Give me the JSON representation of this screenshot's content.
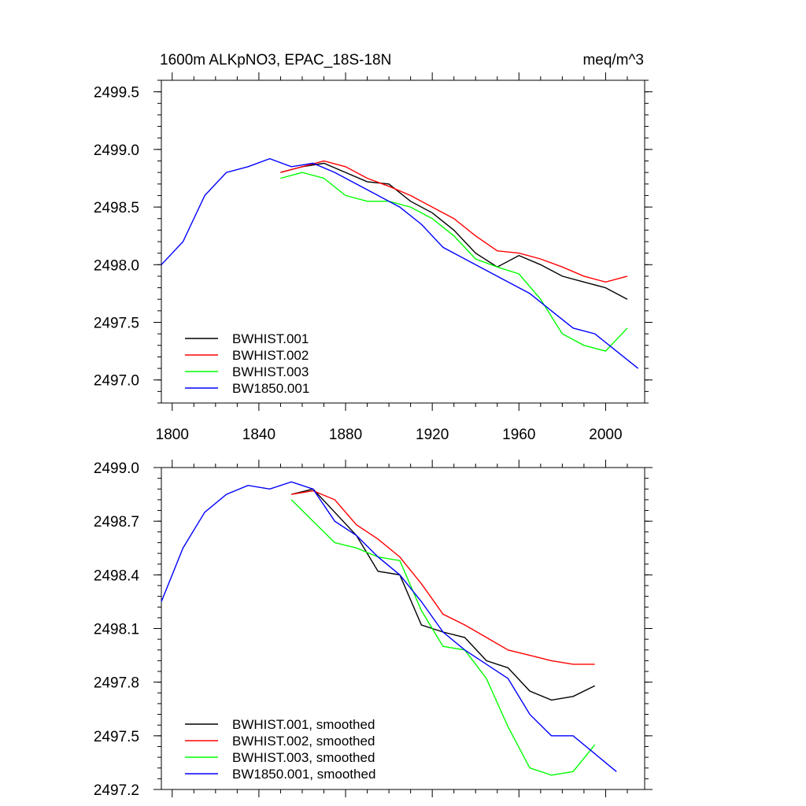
{
  "chart_data": [
    {
      "type": "line",
      "title": "1600m ALKpNO3, EPAC_18S-18N",
      "units": "meq/m^3",
      "xlim": [
        1795,
        2018
      ],
      "ylim": [
        2496.8,
        2499.6
      ],
      "xticks": [
        1800,
        1840,
        1880,
        1920,
        1960,
        2000
      ],
      "yticks": [
        2497.0,
        2497.5,
        2498.0,
        2498.5,
        2499.0,
        2499.5
      ],
      "ytick_labels": [
        "2497.0",
        "2497.5",
        "2498.0",
        "2498.5",
        "2499.0",
        "2499.5"
      ],
      "grid": false,
      "legend": "bottom-left",
      "series": [
        {
          "name": "BWHIST.001",
          "color": "#000000",
          "x_start": 1850,
          "x_step": 10,
          "values": [
            2498.8,
            2498.85,
            2498.88,
            2498.8,
            2498.72,
            2498.7,
            2498.55,
            2498.45,
            2498.3,
            2498.1,
            2497.98,
            2498.08,
            2498.0,
            2497.9,
            2497.85,
            2497.8,
            2497.7
          ]
        },
        {
          "name": "BWHIST.002",
          "color": "#ff0000",
          "x_start": 1850,
          "x_step": 10,
          "values": [
            2498.8,
            2498.85,
            2498.9,
            2498.85,
            2498.75,
            2498.68,
            2498.6,
            2498.5,
            2498.4,
            2498.25,
            2498.12,
            2498.1,
            2498.05,
            2497.98,
            2497.9,
            2497.85,
            2497.9
          ]
        },
        {
          "name": "BWHIST.003",
          "color": "#00ff00",
          "x_start": 1850,
          "x_step": 10,
          "values": [
            2498.75,
            2498.8,
            2498.75,
            2498.6,
            2498.55,
            2498.55,
            2498.5,
            2498.4,
            2498.25,
            2498.05,
            2497.98,
            2497.92,
            2497.7,
            2497.4,
            2497.3,
            2497.25,
            2497.45
          ]
        },
        {
          "name": "BW1850.001",
          "color": "#0000ff",
          "x_start": 1795,
          "x_step": 10,
          "values": [
            2498.0,
            2498.2,
            2498.6,
            2498.8,
            2498.85,
            2498.92,
            2498.85,
            2498.88,
            2498.8,
            2498.7,
            2498.6,
            2498.5,
            2498.35,
            2498.15,
            2498.05,
            2497.95,
            2497.85,
            2497.75,
            2497.6,
            2497.45,
            2497.4,
            2497.25,
            2497.1
          ]
        }
      ]
    },
    {
      "type": "line",
      "xlim": [
        1795,
        2018
      ],
      "ylim": [
        2497.2,
        2499.0
      ],
      "xticks": [
        1800,
        1840,
        1880,
        1920,
        1960,
        2000
      ],
      "yticks": [
        2497.2,
        2497.5,
        2497.8,
        2498.1,
        2498.4,
        2498.7,
        2499.0
      ],
      "ytick_labels": [
        "2497.2",
        "2497.5",
        "2497.8",
        "2498.1",
        "2498.4",
        "2498.7",
        "2499.0"
      ],
      "grid": false,
      "legend": "bottom-left",
      "series": [
        {
          "name": "BWHIST.001, smoothed",
          "color": "#000000",
          "x_start": 1855,
          "x_step": 10,
          "values": [
            2498.85,
            2498.88,
            2498.75,
            2498.62,
            2498.42,
            2498.4,
            2498.12,
            2498.08,
            2498.05,
            2497.92,
            2497.88,
            2497.75,
            2497.7,
            2497.72,
            2497.78
          ]
        },
        {
          "name": "BWHIST.002, smoothed",
          "color": "#ff0000",
          "x_start": 1855,
          "x_step": 10,
          "values": [
            2498.85,
            2498.87,
            2498.82,
            2498.68,
            2498.6,
            2498.5,
            2498.35,
            2498.18,
            2498.12,
            2498.05,
            2497.98,
            2497.95,
            2497.92,
            2497.9,
            2497.9
          ]
        },
        {
          "name": "BWHIST.003, smoothed",
          "color": "#00ff00",
          "x_start": 1855,
          "x_step": 10,
          "values": [
            2498.82,
            2498.7,
            2498.58,
            2498.55,
            2498.5,
            2498.48,
            2498.2,
            2498.0,
            2497.98,
            2497.82,
            2497.55,
            2497.32,
            2497.28,
            2497.3,
            2497.45
          ]
        },
        {
          "name": "BW1850.001, smoothed",
          "color": "#0000ff",
          "x_start": 1795,
          "x_step": 10,
          "values": [
            2498.25,
            2498.55,
            2498.75,
            2498.85,
            2498.9,
            2498.88,
            2498.92,
            2498.88,
            2498.7,
            2498.62,
            2498.5,
            2498.4,
            2498.25,
            2498.08,
            2497.98,
            2497.9,
            2497.82,
            2497.62,
            2497.5,
            2497.5,
            2497.4,
            2497.3
          ]
        }
      ]
    }
  ]
}
